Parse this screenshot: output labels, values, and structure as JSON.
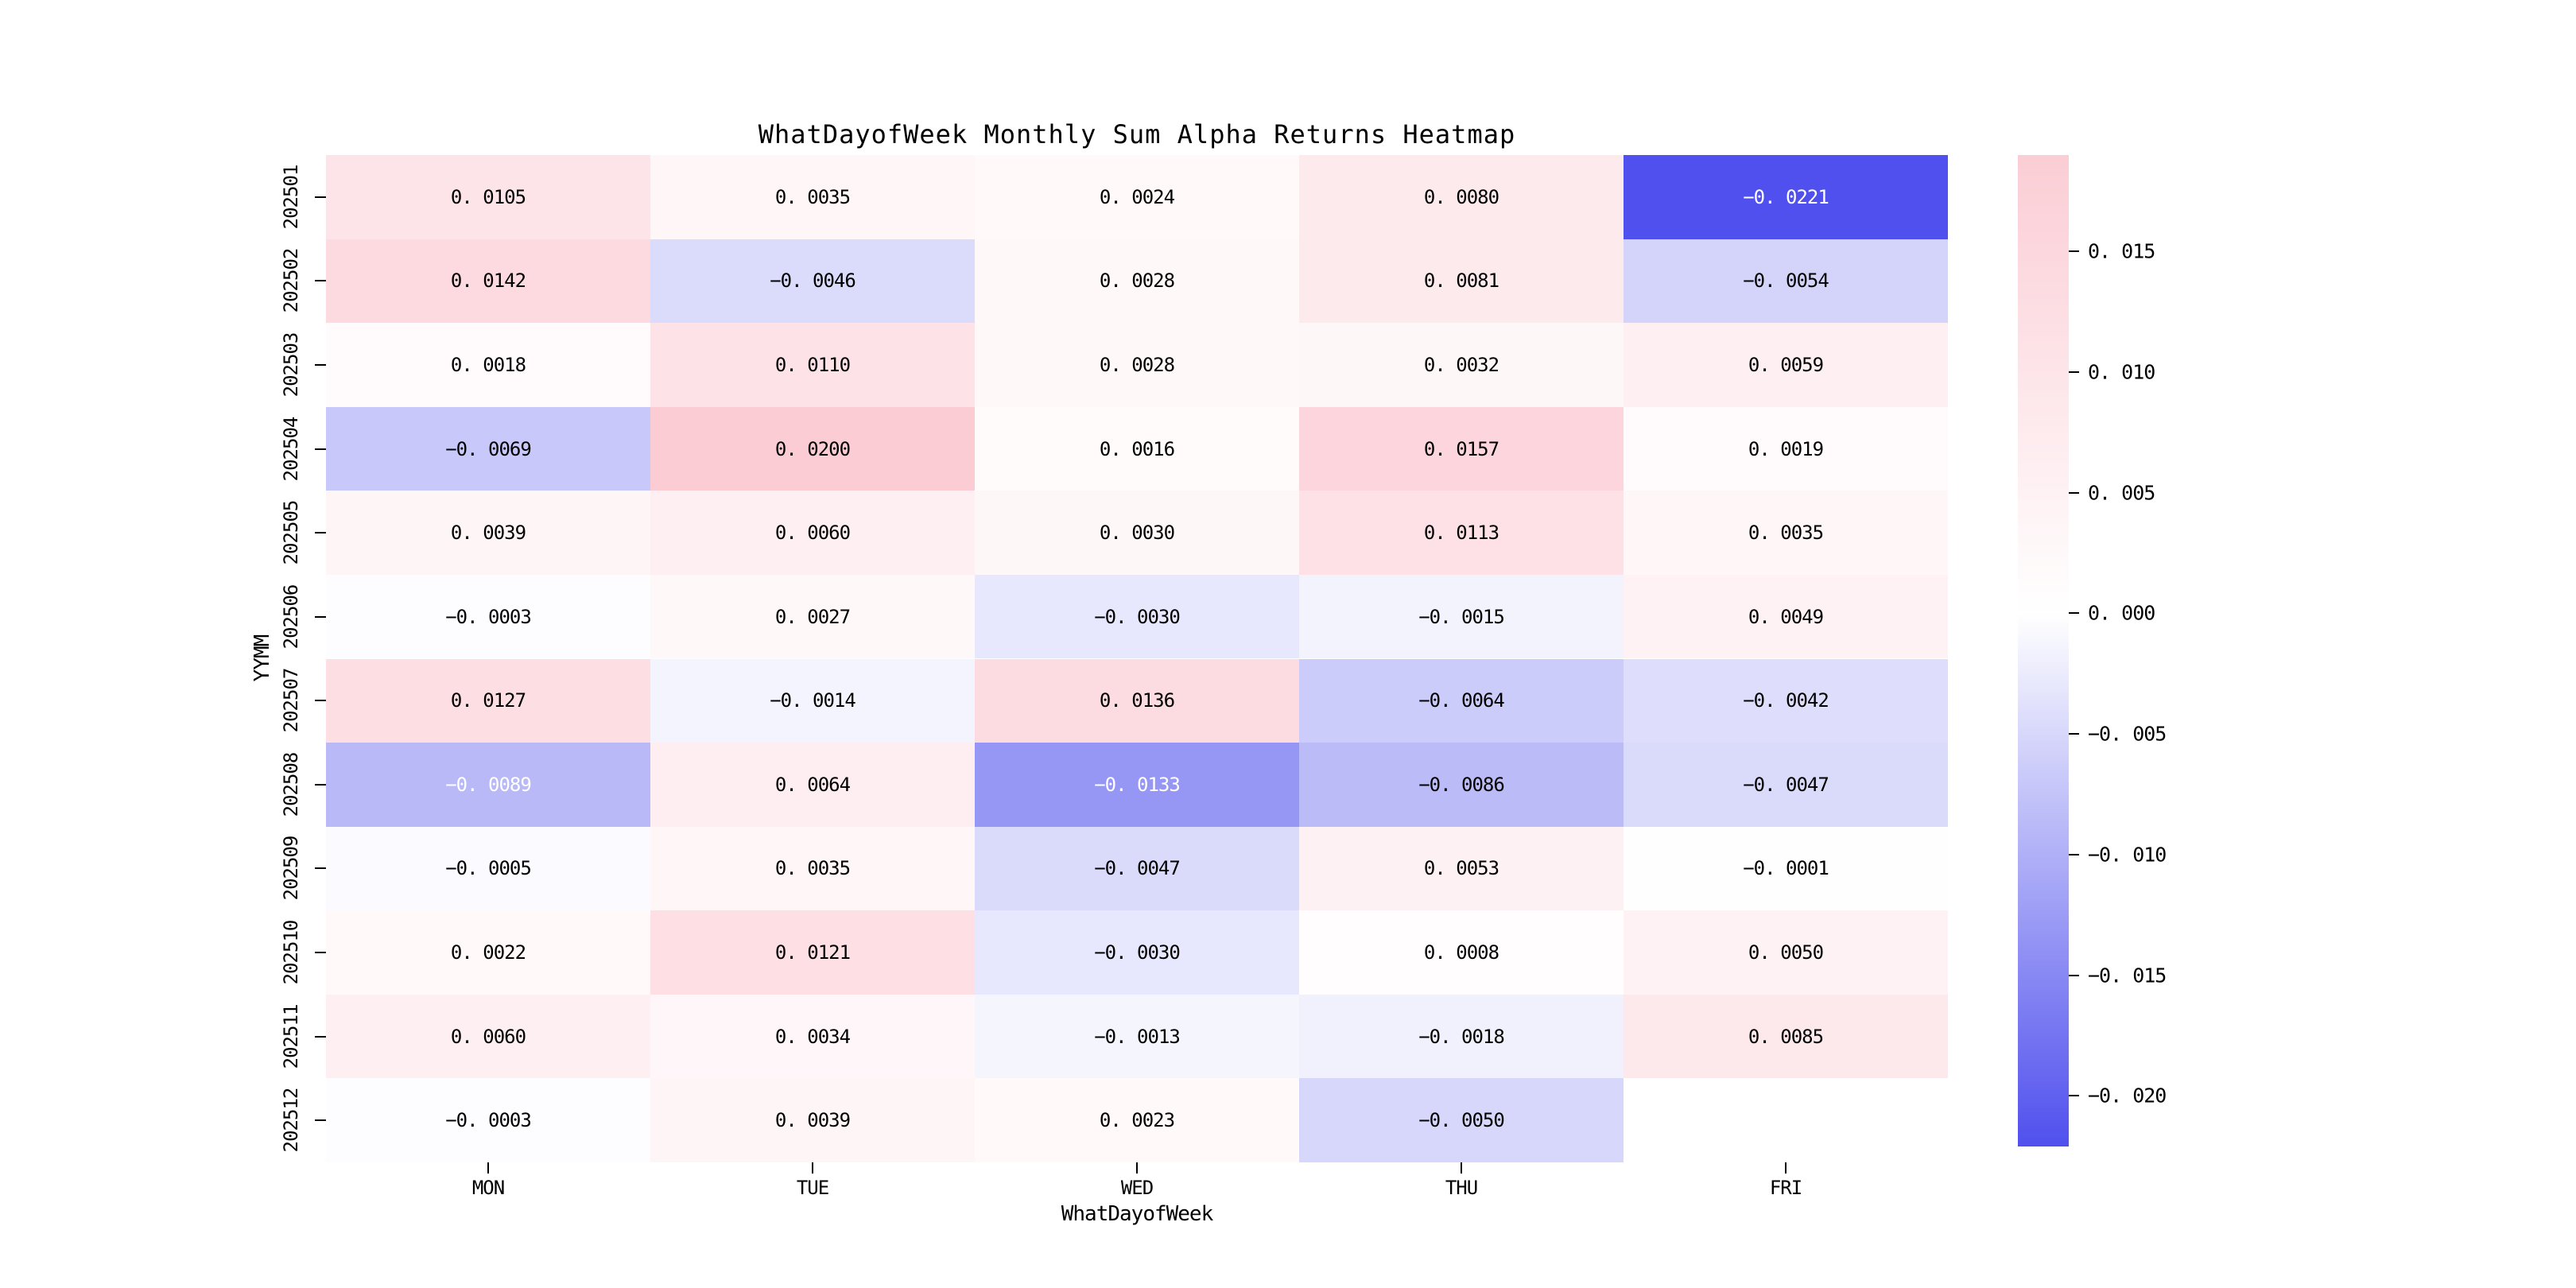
{
  "window": {
    "background": "#ffffff"
  },
  "chart_data": {
    "type": "heatmap",
    "title": "WhatDayofWeek Monthly Sum Alpha Returns Heatmap",
    "xlabel": "WhatDayofWeek",
    "ylabel": "YYMM",
    "x_categories": [
      "MON",
      "TUE",
      "WED",
      "THU",
      "FRI"
    ],
    "y_categories": [
      "202501",
      "202502",
      "202503",
      "202504",
      "202505",
      "202506",
      "202507",
      "202508",
      "202509",
      "202510",
      "202511",
      "202512"
    ],
    "values": [
      [
        0.0105,
        0.0035,
        0.0024,
        0.008,
        -0.0221
      ],
      [
        0.0142,
        -0.0046,
        0.0028,
        0.0081,
        -0.0054
      ],
      [
        0.0018,
        0.011,
        0.0028,
        0.0032,
        0.0059
      ],
      [
        -0.0069,
        0.02,
        0.0016,
        0.0157,
        0.0019
      ],
      [
        0.0039,
        0.006,
        0.003,
        0.0113,
        0.0035
      ],
      [
        -0.0003,
        0.0027,
        -0.003,
        -0.0015,
        0.0049
      ],
      [
        0.0127,
        -0.0014,
        0.0136,
        -0.0064,
        -0.0042
      ],
      [
        -0.0089,
        0.0064,
        -0.0133,
        -0.0086,
        -0.0047
      ],
      [
        -0.0005,
        0.0035,
        -0.0047,
        0.0053,
        -0.0001
      ],
      [
        0.0022,
        0.0121,
        -0.003,
        0.0008,
        0.005
      ],
      [
        0.006,
        0.0034,
        -0.0013,
        -0.0018,
        0.0085
      ],
      [
        -0.0003,
        0.0039,
        0.0023,
        -0.005,
        null
      ]
    ],
    "value_decimals": 4,
    "grid": false,
    "legend_position": "none",
    "colorbar": {
      "position": "right",
      "ticks": [
        0.015,
        0.01,
        0.005,
        0.0,
        -0.005,
        -0.01,
        -0.015,
        -0.02
      ],
      "tick_decimals": 3,
      "vmax": 0.019,
      "vmin": -0.0221
    },
    "colors": {
      "zero": "#ffffff",
      "positive_end": "#fbccd4",
      "negative_end": "#5050ee",
      "positive_cap": 0.0195,
      "negative_cap": 0.0221,
      "dark_text": "#000000",
      "light_text": "#ffffff",
      "light_text_threshold": -0.0088
    }
  }
}
